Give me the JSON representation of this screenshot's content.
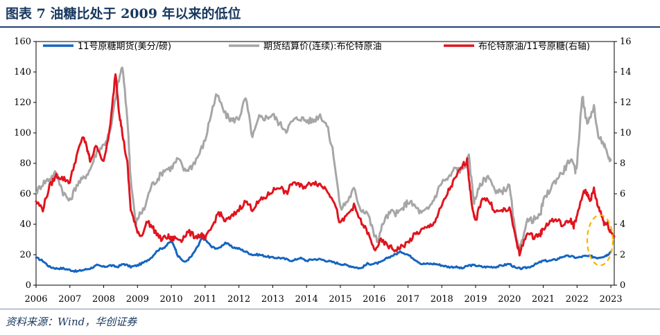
{
  "figure": {
    "title": "图表 7  油糖比处于 2009 年以来的低位",
    "source": "资料来源：Wind，华创证券"
  },
  "colors": {
    "sugar": "#1565c0",
    "oil": "#a6a6a6",
    "ratio": "#e0141e",
    "highlight": "#f5b400",
    "title": "#17375e"
  },
  "chart_data": {
    "type": "line",
    "x_unit": "year",
    "xlim": [
      2006,
      2023.1
    ],
    "x_ticks": [
      "2006",
      "2007",
      "2008",
      "2009",
      "2010",
      "2011",
      "2012",
      "2013",
      "2014",
      "2015",
      "2016",
      "2017",
      "2018",
      "2019",
      "2020",
      "2021",
      "2022",
      "2023"
    ],
    "y_left": {
      "lim": [
        0,
        160
      ],
      "ticks": [
        "0",
        "20",
        "40",
        "60",
        "80",
        "100",
        "120",
        "140",
        "160"
      ]
    },
    "y_right": {
      "lim": [
        0,
        16
      ],
      "ticks": [
        "0",
        "2",
        "4",
        "6",
        "8",
        "10",
        "12",
        "14",
        "16"
      ]
    },
    "legend_position": "top",
    "grid": false,
    "highlight_annotation": {
      "shape": "dashed ellipse",
      "x_range": [
        2022.3,
        2023.3
      ],
      "y_right_range": [
        1.3,
        4.6
      ]
    },
    "series": [
      {
        "name": "11号原糖期货(美分/磅)",
        "axis": "left",
        "color_key": "sugar",
        "points": [
          [
            2006.0,
            18
          ],
          [
            2006.2,
            16
          ],
          [
            2006.4,
            12
          ],
          [
            2006.6,
            11
          ],
          [
            2006.8,
            11
          ],
          [
            2007.0,
            10
          ],
          [
            2007.2,
            9
          ],
          [
            2007.4,
            10
          ],
          [
            2007.6,
            11
          ],
          [
            2007.8,
            13
          ],
          [
            2008.0,
            12
          ],
          [
            2008.2,
            13
          ],
          [
            2008.4,
            12
          ],
          [
            2008.6,
            14
          ],
          [
            2008.8,
            12
          ],
          [
            2009.0,
            13
          ],
          [
            2009.2,
            15
          ],
          [
            2009.4,
            18
          ],
          [
            2009.6,
            23
          ],
          [
            2009.8,
            25
          ],
          [
            2010.0,
            29
          ],
          [
            2010.1,
            25
          ],
          [
            2010.2,
            19
          ],
          [
            2010.4,
            15
          ],
          [
            2010.6,
            19
          ],
          [
            2010.8,
            26
          ],
          [
            2010.9,
            31
          ],
          [
            2011.0,
            30
          ],
          [
            2011.2,
            25
          ],
          [
            2011.4,
            24
          ],
          [
            2011.6,
            28
          ],
          [
            2011.8,
            25
          ],
          [
            2012.0,
            24
          ],
          [
            2012.2,
            22
          ],
          [
            2012.4,
            20
          ],
          [
            2012.6,
            20
          ],
          [
            2012.8,
            19
          ],
          [
            2013.0,
            18
          ],
          [
            2013.2,
            18
          ],
          [
            2013.4,
            17
          ],
          [
            2013.6,
            16
          ],
          [
            2013.8,
            18
          ],
          [
            2014.0,
            16
          ],
          [
            2014.2,
            17
          ],
          [
            2014.4,
            17
          ],
          [
            2014.6,
            16
          ],
          [
            2014.8,
            15
          ],
          [
            2015.0,
            14
          ],
          [
            2015.2,
            13
          ],
          [
            2015.4,
            12
          ],
          [
            2015.6,
            11
          ],
          [
            2015.8,
            14
          ],
          [
            2016.0,
            14
          ],
          [
            2016.2,
            15
          ],
          [
            2016.4,
            18
          ],
          [
            2016.6,
            20
          ],
          [
            2016.8,
            22
          ],
          [
            2017.0,
            20
          ],
          [
            2017.2,
            17
          ],
          [
            2017.4,
            14
          ],
          [
            2017.6,
            14
          ],
          [
            2017.8,
            14
          ],
          [
            2018.0,
            13
          ],
          [
            2018.2,
            12
          ],
          [
            2018.4,
            12
          ],
          [
            2018.6,
            11
          ],
          [
            2018.8,
            13
          ],
          [
            2019.0,
            13
          ],
          [
            2019.2,
            12
          ],
          [
            2019.4,
            12
          ],
          [
            2019.6,
            12
          ],
          [
            2019.8,
            13
          ],
          [
            2020.0,
            14
          ],
          [
            2020.2,
            11
          ],
          [
            2020.4,
            11
          ],
          [
            2020.6,
            12
          ],
          [
            2020.8,
            14
          ],
          [
            2021.0,
            16
          ],
          [
            2021.2,
            16
          ],
          [
            2021.4,
            17
          ],
          [
            2021.6,
            19
          ],
          [
            2021.8,
            19
          ],
          [
            2022.0,
            18
          ],
          [
            2022.2,
            19
          ],
          [
            2022.4,
            19
          ],
          [
            2022.6,
            18
          ],
          [
            2022.8,
            19
          ],
          [
            2022.9,
            20
          ],
          [
            2023.0,
            22
          ]
        ]
      },
      {
        "name": "期货结算价(连续):布伦特原油",
        "axis": "left",
        "color_key": "oil",
        "points": [
          [
            2006.0,
            61
          ],
          [
            2006.2,
            67
          ],
          [
            2006.4,
            70
          ],
          [
            2006.6,
            74
          ],
          [
            2006.8,
            61
          ],
          [
            2007.0,
            55
          ],
          [
            2007.2,
            66
          ],
          [
            2007.4,
            70
          ],
          [
            2007.6,
            76
          ],
          [
            2007.8,
            88
          ],
          [
            2008.0,
            92
          ],
          [
            2008.2,
            101
          ],
          [
            2008.4,
            130
          ],
          [
            2008.55,
            144
          ],
          [
            2008.7,
            110
          ],
          [
            2008.8,
            70
          ],
          [
            2008.95,
            40
          ],
          [
            2009.0,
            44
          ],
          [
            2009.2,
            50
          ],
          [
            2009.4,
            65
          ],
          [
            2009.6,
            70
          ],
          [
            2009.8,
            76
          ],
          [
            2010.0,
            77
          ],
          [
            2010.2,
            83
          ],
          [
            2010.4,
            75
          ],
          [
            2010.6,
            78
          ],
          [
            2010.8,
            85
          ],
          [
            2011.0,
            95
          ],
          [
            2011.2,
            115
          ],
          [
            2011.35,
            125
          ],
          [
            2011.6,
            112
          ],
          [
            2011.8,
            108
          ],
          [
            2012.0,
            110
          ],
          [
            2012.2,
            123
          ],
          [
            2012.4,
            97
          ],
          [
            2012.6,
            110
          ],
          [
            2012.8,
            110
          ],
          [
            2013.0,
            112
          ],
          [
            2013.2,
            106
          ],
          [
            2013.4,
            102
          ],
          [
            2013.6,
            108
          ],
          [
            2013.8,
            110
          ],
          [
            2014.0,
            108
          ],
          [
            2014.2,
            108
          ],
          [
            2014.4,
            112
          ],
          [
            2014.6,
            105
          ],
          [
            2014.8,
            86
          ],
          [
            2015.0,
            50
          ],
          [
            2015.2,
            55
          ],
          [
            2015.4,
            63
          ],
          [
            2015.6,
            50
          ],
          [
            2015.8,
            48
          ],
          [
            2016.0,
            33
          ],
          [
            2016.1,
            29
          ],
          [
            2016.3,
            43
          ],
          [
            2016.5,
            48
          ],
          [
            2016.7,
            47
          ],
          [
            2016.9,
            52
          ],
          [
            2017.0,
            55
          ],
          [
            2017.2,
            52
          ],
          [
            2017.4,
            47
          ],
          [
            2017.6,
            50
          ],
          [
            2017.8,
            58
          ],
          [
            2018.0,
            68
          ],
          [
            2018.2,
            70
          ],
          [
            2018.4,
            77
          ],
          [
            2018.6,
            75
          ],
          [
            2018.8,
            84
          ],
          [
            2018.95,
            55
          ],
          [
            2019.0,
            58
          ],
          [
            2019.2,
            68
          ],
          [
            2019.4,
            72
          ],
          [
            2019.6,
            60
          ],
          [
            2019.8,
            62
          ],
          [
            2020.0,
            65
          ],
          [
            2020.2,
            30
          ],
          [
            2020.3,
            22
          ],
          [
            2020.5,
            42
          ],
          [
            2020.7,
            43
          ],
          [
            2020.9,
            45
          ],
          [
            2021.0,
            55
          ],
          [
            2021.2,
            63
          ],
          [
            2021.4,
            70
          ],
          [
            2021.6,
            75
          ],
          [
            2021.8,
            83
          ],
          [
            2021.95,
            75
          ],
          [
            2022.0,
            80
          ],
          [
            2022.15,
            125
          ],
          [
            2022.3,
            105
          ],
          [
            2022.5,
            118
          ],
          [
            2022.6,
            100
          ],
          [
            2022.8,
            92
          ],
          [
            2022.9,
            85
          ],
          [
            2023.0,
            82
          ]
        ]
      },
      {
        "name": "布伦特原油/11号原糖(右轴)",
        "axis": "right",
        "color_key": "ratio",
        "points": [
          [
            2006.0,
            5.5
          ],
          [
            2006.2,
            5.0
          ],
          [
            2006.4,
            6.5
          ],
          [
            2006.6,
            7.2
          ],
          [
            2006.8,
            7.0
          ],
          [
            2007.0,
            6.8
          ],
          [
            2007.2,
            8.5
          ],
          [
            2007.4,
            9.8
          ],
          [
            2007.5,
            9.0
          ],
          [
            2007.6,
            8.2
          ],
          [
            2007.8,
            9.2
          ],
          [
            2008.0,
            8.0
          ],
          [
            2008.2,
            10.5
          ],
          [
            2008.35,
            14.0
          ],
          [
            2008.45,
            11.5
          ],
          [
            2008.55,
            10.0
          ],
          [
            2008.7,
            8.0
          ],
          [
            2008.8,
            5.0
          ],
          [
            2008.95,
            3.8
          ],
          [
            2009.1,
            3.2
          ],
          [
            2009.3,
            4.2
          ],
          [
            2009.5,
            3.6
          ],
          [
            2009.7,
            3.0
          ],
          [
            2009.9,
            3.2
          ],
          [
            2010.0,
            3.0
          ],
          [
            2010.1,
            3.1
          ],
          [
            2010.3,
            3.0
          ],
          [
            2010.5,
            3.5
          ],
          [
            2010.7,
            3.2
          ],
          [
            2010.9,
            3.3
          ],
          [
            2011.0,
            3.0
          ],
          [
            2011.2,
            3.8
          ],
          [
            2011.4,
            4.8
          ],
          [
            2011.6,
            4.2
          ],
          [
            2011.8,
            4.5
          ],
          [
            2012.0,
            5.0
          ],
          [
            2012.2,
            5.5
          ],
          [
            2012.4,
            5.0
          ],
          [
            2012.6,
            5.5
          ],
          [
            2012.8,
            5.8
          ],
          [
            2013.0,
            6.2
          ],
          [
            2013.2,
            6.5
          ],
          [
            2013.4,
            6.0
          ],
          [
            2013.6,
            6.8
          ],
          [
            2013.8,
            6.5
          ],
          [
            2014.0,
            6.5
          ],
          [
            2014.2,
            6.8
          ],
          [
            2014.4,
            6.6
          ],
          [
            2014.6,
            6.3
          ],
          [
            2014.8,
            5.6
          ],
          [
            2015.0,
            4.0
          ],
          [
            2015.2,
            4.6
          ],
          [
            2015.4,
            5.2
          ],
          [
            2015.6,
            4.2
          ],
          [
            2015.8,
            3.5
          ],
          [
            2016.0,
            2.3
          ],
          [
            2016.2,
            2.9
          ],
          [
            2016.4,
            2.6
          ],
          [
            2016.6,
            2.3
          ],
          [
            2016.8,
            2.5
          ],
          [
            2017.0,
            2.8
          ],
          [
            2017.2,
            3.3
          ],
          [
            2017.4,
            3.6
          ],
          [
            2017.6,
            3.8
          ],
          [
            2017.8,
            4.2
          ],
          [
            2018.0,
            5.2
          ],
          [
            2018.2,
            6.2
          ],
          [
            2018.4,
            7.0
          ],
          [
            2018.6,
            7.8
          ],
          [
            2018.75,
            8.2
          ],
          [
            2018.85,
            6.0
          ],
          [
            2018.95,
            4.5
          ],
          [
            2019.0,
            4.2
          ],
          [
            2019.2,
            5.8
          ],
          [
            2019.4,
            5.5
          ],
          [
            2019.6,
            4.8
          ],
          [
            2019.8,
            4.9
          ],
          [
            2020.0,
            5.0
          ],
          [
            2020.2,
            3.0
          ],
          [
            2020.3,
            2.0
          ],
          [
            2020.5,
            3.4
          ],
          [
            2020.7,
            3.2
          ],
          [
            2020.9,
            3.3
          ],
          [
            2021.0,
            3.7
          ],
          [
            2021.2,
            4.2
          ],
          [
            2021.4,
            4.3
          ],
          [
            2021.6,
            3.9
          ],
          [
            2021.8,
            4.3
          ],
          [
            2021.9,
            3.9
          ],
          [
            2022.0,
            4.5
          ],
          [
            2022.2,
            6.2
          ],
          [
            2022.3,
            6.0
          ],
          [
            2022.4,
            5.6
          ],
          [
            2022.5,
            6.3
          ],
          [
            2022.6,
            5.3
          ],
          [
            2022.7,
            4.8
          ],
          [
            2022.8,
            4.1
          ],
          [
            2022.9,
            4.0
          ],
          [
            2023.0,
            3.5
          ],
          [
            2023.1,
            3.2
          ]
        ]
      }
    ]
  }
}
